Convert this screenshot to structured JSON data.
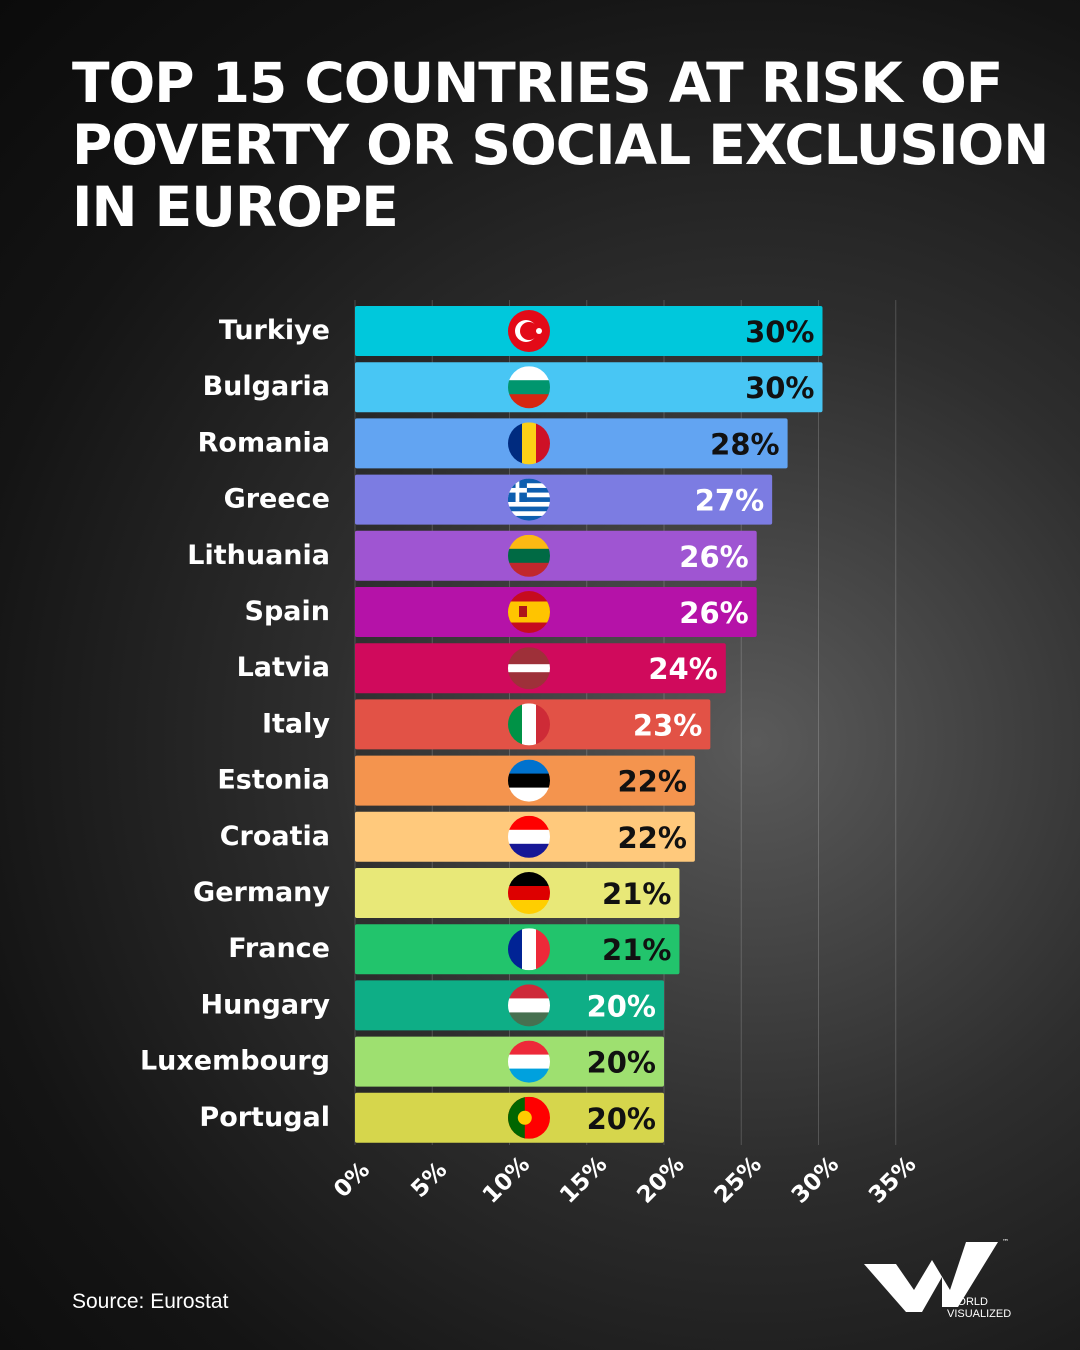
{
  "title": "TOP 15 COUNTRIES AT RISK OF POVERTY OR SOCIAL EXCLUSION IN EUROPE",
  "source": "Source: Eurostat",
  "brand": {
    "line1": "WORLD",
    "line2": "VISUALIZED",
    "tm": "™"
  },
  "chart_data": {
    "type": "bar",
    "orientation": "horizontal",
    "title": "TOP 15 COUNTRIES AT RISK OF POVERTY OR SOCIAL EXCLUSION IN EUROPE",
    "xlabel": "",
    "ylabel": "",
    "xlim": [
      0,
      35
    ],
    "x_ticks": [
      "0%",
      "5%",
      "10%",
      "15%",
      "20%",
      "25%",
      "30%",
      "35%"
    ],
    "grid": true,
    "categories": [
      "Turkiye",
      "Bulgaria",
      "Romania",
      "Greece",
      "Lithuania",
      "Spain",
      "Latvia",
      "Italy",
      "Estonia",
      "Croatia",
      "Germany",
      "France",
      "Hungary",
      "Luxembourg",
      "Portugal"
    ],
    "values": [
      30,
      30,
      28,
      27,
      26,
      26,
      24,
      23,
      22,
      22,
      21,
      21,
      20,
      20,
      20
    ],
    "data_labels": [
      "30%",
      "30%",
      "28%",
      "27%",
      "26%",
      "26%",
      "24%",
      "23%",
      "22%",
      "22%",
      "21%",
      "21%",
      "20%",
      "20%",
      "20%"
    ],
    "bar_colors": [
      "#00c8dc",
      "#48c6f4",
      "#62a4f2",
      "#7c7ce2",
      "#9f55d2",
      "#b512a8",
      "#d00a5c",
      "#e25246",
      "#f4944e",
      "#ffc97c",
      "#e8e878",
      "#22c46c",
      "#0eae86",
      "#9ee070",
      "#d6d64c"
    ],
    "label_colors": [
      "#111",
      "#111",
      "#111",
      "#fff",
      "#fff",
      "#fff",
      "#fff",
      "#fff",
      "#111",
      "#111",
      "#111",
      "#111",
      "#fff",
      "#111",
      "#111"
    ],
    "flags": [
      {
        "type": "turkey",
        "colors": [
          "#e30a17",
          "#ffffff"
        ]
      },
      {
        "type": "h",
        "colors": [
          "#ffffff",
          "#00966e",
          "#d62612"
        ]
      },
      {
        "type": "v",
        "colors": [
          "#002b7f",
          "#fcd116",
          "#ce1126"
        ]
      },
      {
        "type": "greece",
        "colors": [
          "#0d5eaf",
          "#ffffff"
        ]
      },
      {
        "type": "h",
        "colors": [
          "#fdb913",
          "#006a44",
          "#c1272d"
        ]
      },
      {
        "type": "spain",
        "colors": [
          "#c60b1e",
          "#ffc400"
        ]
      },
      {
        "type": "latvia",
        "colors": [
          "#9e3039",
          "#ffffff"
        ]
      },
      {
        "type": "v",
        "colors": [
          "#009246",
          "#ffffff",
          "#ce2b37"
        ]
      },
      {
        "type": "h",
        "colors": [
          "#0072ce",
          "#000000",
          "#ffffff"
        ]
      },
      {
        "type": "h",
        "colors": [
          "#ff0000",
          "#ffffff",
          "#171796"
        ]
      },
      {
        "type": "h",
        "colors": [
          "#000000",
          "#dd0000",
          "#ffce00"
        ]
      },
      {
        "type": "v",
        "colors": [
          "#002395",
          "#ffffff",
          "#ed2939"
        ]
      },
      {
        "type": "h",
        "colors": [
          "#ce2939",
          "#ffffff",
          "#477050"
        ]
      },
      {
        "type": "h",
        "colors": [
          "#ed2939",
          "#ffffff",
          "#00a1de"
        ]
      },
      {
        "type": "portugal",
        "colors": [
          "#006600",
          "#ff0000",
          "#ffcc00"
        ]
      }
    ]
  }
}
